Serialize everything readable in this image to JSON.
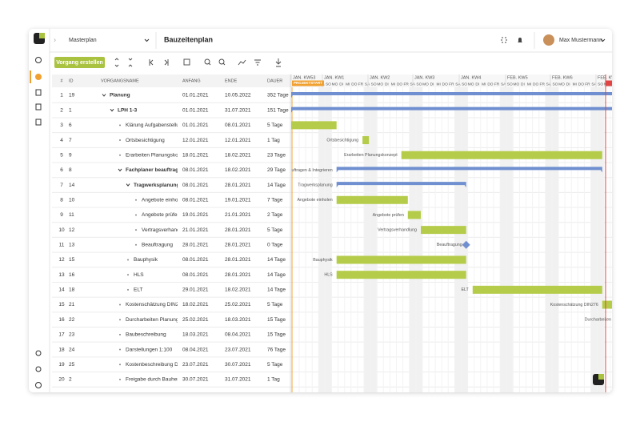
{
  "header": {
    "project": "Masterplan",
    "view": "Bauzeitenplan",
    "user": "Max Mustermann"
  },
  "toolbar": {
    "create_button": "Vorgang erstellen"
  },
  "table": {
    "columns": [
      "#",
      "ID",
      "VORGANGSNAME",
      "ANFANG",
      "ENDE",
      "DAUER"
    ],
    "rows": [
      {
        "num": 1,
        "id": 19,
        "name": "Planung",
        "start": "01.01.2021",
        "end": "10.05.2022",
        "duration": "352 Tage"
      },
      {
        "num": 2,
        "id": 1,
        "name": "LPH 1-3",
        "start": "01.01.2021",
        "end": "31.07.2021",
        "duration": "151 Tage"
      },
      {
        "num": 3,
        "id": 6,
        "name": "Klärung Aufgabenstellung",
        "start": "01.01.2021",
        "end": "08.01.2021",
        "duration": "5 Tage"
      },
      {
        "num": 4,
        "id": 7,
        "name": "Ortsbesichtigung",
        "start": "12.01.2021",
        "end": "12.01.2021",
        "duration": "1 Tag",
        "bar_label": "Ortsbesichtigung"
      },
      {
        "num": 5,
        "id": 9,
        "name": "Erarbeiten Planungskonzept",
        "start": "18.01.2021",
        "end": "18.02.2021",
        "duration": "23 Tage",
        "bar_label": "Erarbeiten Planungskonzept"
      },
      {
        "num": 6,
        "id": 8,
        "name": "Fachplaner beauftragen & Integrieren",
        "start": "08.01.2021",
        "end": "18.02.2021",
        "duration": "29 Tage",
        "bar_label": "uftragen & Integrieren"
      },
      {
        "num": 7,
        "id": 14,
        "name": "Tragwerksplanung",
        "start": "08.01.2021",
        "end": "28.01.2021",
        "duration": "14 Tage",
        "bar_label": "Tragwerksplanung"
      },
      {
        "num": 8,
        "id": 10,
        "name": "Angebote einholen",
        "start": "08.01.2021",
        "end": "19.01.2021",
        "duration": "7 Tage",
        "bar_label": "Angebote einholen"
      },
      {
        "num": 9,
        "id": 11,
        "name": "Angebote prüfen",
        "start": "19.01.2021",
        "end": "21.01.2021",
        "duration": "2 Tage",
        "bar_label": "Angebote prüfen"
      },
      {
        "num": 10,
        "id": 12,
        "name": "Vertragsverhandlung",
        "start": "21.01.2021",
        "end": "28.01.2021",
        "duration": "5 Tage",
        "bar_label": "Vertragsverhandlung"
      },
      {
        "num": 11,
        "id": 13,
        "name": "Beauftragung",
        "start": "28.01.2021",
        "end": "28.01.2021",
        "duration": "0 Tage",
        "bar_label": "Beauftragung"
      },
      {
        "num": 12,
        "id": 15,
        "name": "Bauphysik",
        "start": "08.01.2021",
        "end": "28.01.2021",
        "duration": "14 Tage",
        "bar_label": "Bauphysik"
      },
      {
        "num": 13,
        "id": 16,
        "name": "HLS",
        "start": "08.01.2021",
        "end": "28.01.2021",
        "duration": "14 Tage",
        "bar_label": "HLS"
      },
      {
        "num": 14,
        "id": 18,
        "name": "ELT",
        "start": "29.01.2021",
        "end": "18.02.2021",
        "duration": "14 Tage",
        "bar_label": "ELT"
      },
      {
        "num": 15,
        "id": 21,
        "name": "Kostenschätzung DIN276",
        "start": "18.02.2021",
        "end": "25.02.2021",
        "duration": "5 Tage",
        "bar_label": "Kostenschätzung DIN276"
      },
      {
        "num": 16,
        "id": 22,
        "name": "Durcharbeiten Planungskonzept",
        "start": "25.02.2021",
        "end": "18.03.2021",
        "duration": "15 Tage",
        "bar_label": "Durcharbeiten"
      },
      {
        "num": 17,
        "id": 23,
        "name": "Baubeschreibung",
        "start": "18.03.2021",
        "end": "08.04.2021",
        "duration": "15 Tage"
      },
      {
        "num": 18,
        "id": 24,
        "name": "Darstellungen 1:100",
        "start": "08.04.2021",
        "end": "23.07.2021",
        "duration": "76 Tage"
      },
      {
        "num": 19,
        "id": 25,
        "name": "Kostenbeschreibung DIN276",
        "start": "23.07.2021",
        "end": "30.07.2021",
        "duration": "5 Tage"
      },
      {
        "num": 20,
        "id": 2,
        "name": "Freigabe durch Bauherr",
        "start": "30.07.2021",
        "end": "31.07.2021",
        "duration": "1 Tag"
      }
    ]
  },
  "timeline": {
    "weeks": [
      "JAN. KW53",
      "JAN. KW1",
      "JAN. KW2",
      "JAN. KW3",
      "JAN. KW4",
      "FEB. KW5",
      "FEB. KW6",
      "FEB. KW7"
    ],
    "days": [
      "MO",
      "DI",
      "MI",
      "DO",
      "FR",
      "SA",
      "SO"
    ],
    "project_start": "PROJEKTSTART"
  }
}
